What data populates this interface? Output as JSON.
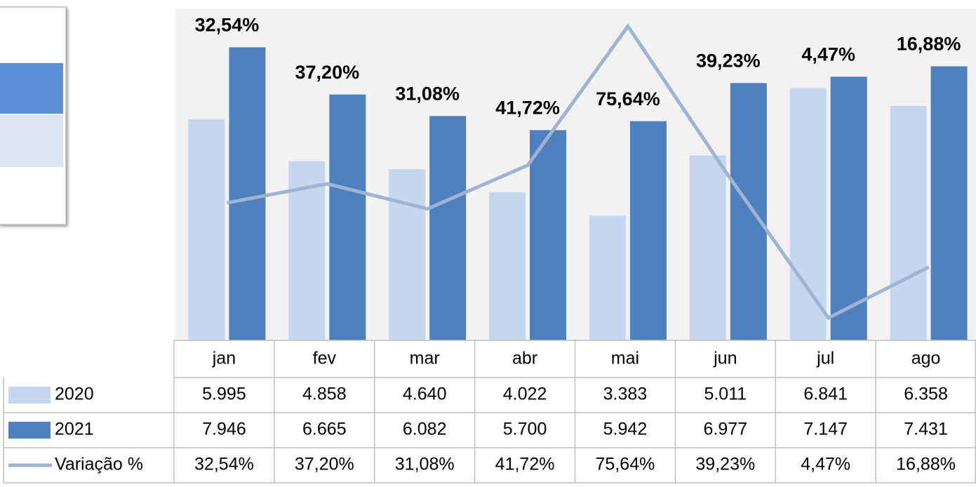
{
  "chart_data": {
    "type": "bar",
    "categories": [
      "jan",
      "fev",
      "mar",
      "abr",
      "mai",
      "jun",
      "jul",
      "ago"
    ],
    "series": [
      {
        "name": "2020",
        "color": "#c5d7ee",
        "values": [
          5995,
          4858,
          4640,
          4022,
          3383,
          5011,
          6841,
          6358
        ],
        "value_labels": [
          "5.995",
          "4.858",
          "4.640",
          "4.022",
          "3.383",
          "5.011",
          "6.841",
          "6.358"
        ]
      },
      {
        "name": "2021",
        "color": "#4e80bd",
        "values": [
          7946,
          6665,
          6082,
          5700,
          5942,
          6977,
          7147,
          7431
        ],
        "value_labels": [
          "7.946",
          "6.665",
          "6.082",
          "5.700",
          "5.942",
          "6.977",
          "7.147",
          "7.431"
        ]
      },
      {
        "name": "Variação %",
        "type": "line",
        "axis": "y2",
        "color": "#9fb3d4",
        "values": [
          32.54,
          37.2,
          31.08,
          41.72,
          75.64,
          39.23,
          4.47,
          16.88
        ],
        "value_labels": [
          "32,54%",
          "37,20%",
          "31,08%",
          "41,72%",
          "75,64%",
          "39,23%",
          "4,47%",
          "16,88%"
        ]
      }
    ],
    "ylim": [
      0,
      9000
    ],
    "y2lim": [
      -1,
      80
    ]
  }
}
